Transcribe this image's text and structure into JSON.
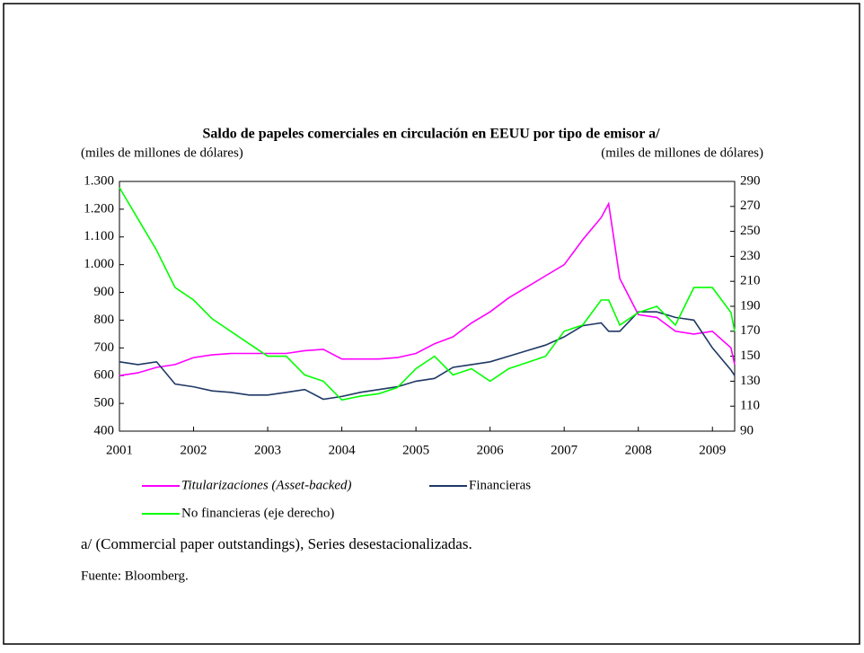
{
  "chart_data": {
    "type": "line",
    "title": "Saldo de papeles comerciales en circulación en EEUU por tipo de emisor a/",
    "y_label": "(miles de millones de dólares)",
    "y2_label": "(miles de millones de dólares)",
    "footnote": "a/ (Commercial paper outstandings), Series desestacionalizadas.",
    "source": "Fuente: Bloomberg.",
    "x": [
      2001,
      2001.25,
      2001.5,
      2001.75,
      2002,
      2002.25,
      2002.5,
      2002.75,
      2003,
      2003.25,
      2003.5,
      2003.75,
      2004,
      2004.25,
      2004.5,
      2004.75,
      2005,
      2005.25,
      2005.5,
      2005.75,
      2006,
      2006.25,
      2006.5,
      2006.75,
      2007,
      2007.25,
      2007.5,
      2007.6,
      2007.75,
      2008,
      2008.25,
      2008.5,
      2008.75,
      2009,
      2009.25,
      2009.3
    ],
    "xlim": [
      2001,
      2009.3
    ],
    "xticks": [
      2001,
      2002,
      2003,
      2004,
      2005,
      2006,
      2007,
      2008,
      2009
    ],
    "ylim": [
      400,
      1300
    ],
    "yticks": [
      400,
      500,
      600,
      700,
      800,
      900,
      {
        "value": 1000,
        "label": "1.000"
      },
      {
        "value": 1100,
        "label": "1.100"
      },
      {
        "value": 1200,
        "label": "1.200"
      },
      {
        "value": 1300,
        "label": "1.300"
      }
    ],
    "y2lim": [
      90,
      290
    ],
    "y2ticks": [
      90,
      110,
      130,
      150,
      170,
      190,
      210,
      230,
      250,
      270,
      290
    ],
    "series": [
      {
        "name": "Titularizaciones (Asset-backed)",
        "color": "#ff00ff",
        "values": [
          600,
          610,
          630,
          640,
          665,
          675,
          680,
          680,
          680,
          680,
          690,
          695,
          660,
          660,
          660,
          665,
          680,
          715,
          740,
          790,
          830,
          880,
          920,
          960,
          1000,
          1090,
          1170,
          1220,
          950,
          820,
          810,
          760,
          750,
          760,
          700,
          640
        ]
      },
      {
        "name": "Financieras",
        "color": "#1f3864",
        "values": [
          650,
          640,
          650,
          570,
          560,
          545,
          540,
          530,
          530,
          540,
          550,
          515,
          525,
          540,
          550,
          560,
          580,
          590,
          630,
          640,
          650,
          670,
          690,
          710,
          740,
          780,
          790,
          760,
          760,
          830,
          830,
          810,
          800,
          700,
          620,
          600
        ]
      },
      {
        "name": "No financieras (eje derecho)",
        "color": "#00ff00",
        "axis": "y2",
        "values": [
          285,
          260,
          235,
          205,
          195,
          180,
          170,
          160,
          150,
          150,
          135,
          130,
          115,
          118,
          120,
          125,
          140,
          150,
          135,
          140,
          130,
          140,
          145,
          150,
          170,
          175,
          195,
          195,
          175,
          185,
          190,
          175,
          205,
          205,
          185,
          170
        ]
      }
    ]
  }
}
